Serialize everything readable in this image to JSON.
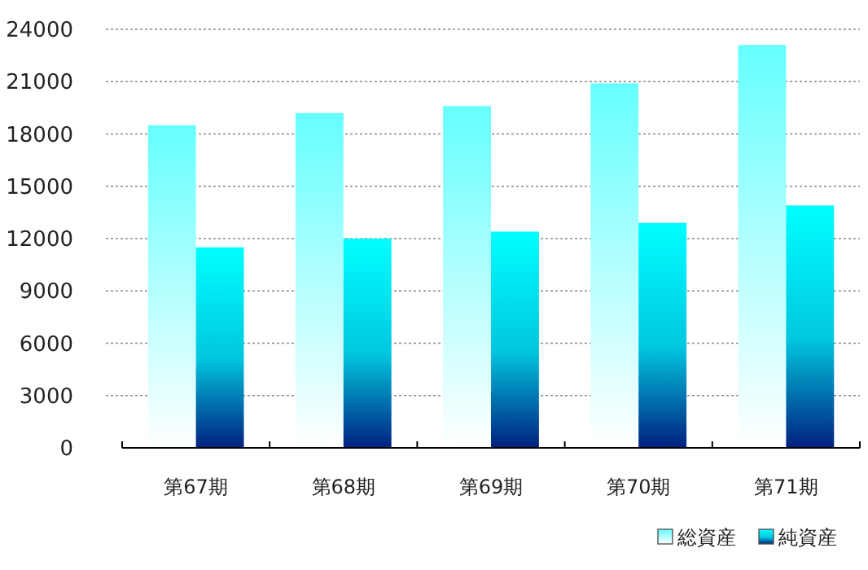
{
  "chart_data": {
    "type": "bar",
    "categories": [
      "第67期",
      "第68期",
      "第69期",
      "第70期",
      "第71期"
    ],
    "series": [
      {
        "name": "総資産",
        "color": "#66ffff",
        "values": [
          18500,
          19200,
          19600,
          20900,
          23100
        ]
      },
      {
        "name": "純資産",
        "color": "#00ffff",
        "values": [
          11500,
          12000,
          12400,
          12900,
          13900
        ]
      }
    ],
    "ylim": [
      0,
      24000
    ],
    "yticks": [
      0,
      3000,
      6000,
      9000,
      12000,
      15000,
      18000,
      21000,
      24000
    ],
    "grid": "y",
    "legend": "bottom right"
  }
}
